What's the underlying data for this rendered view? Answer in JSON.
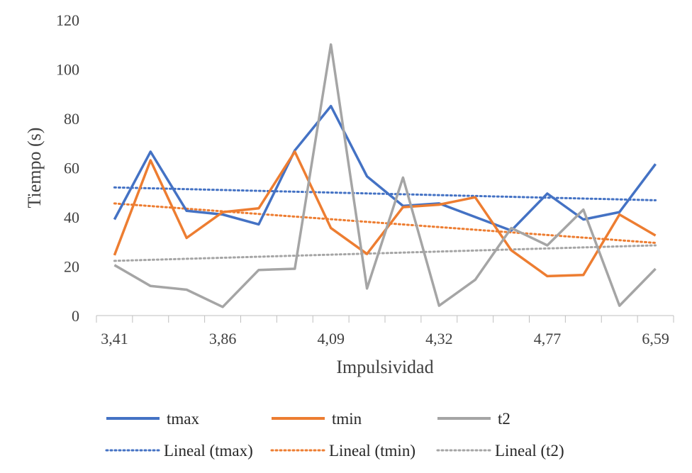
{
  "chart_data": {
    "type": "line",
    "xlabel": "Impulsividad",
    "ylabel": "Tiempo (s)",
    "ylim": [
      0,
      120
    ],
    "yticks": [
      0,
      20,
      40,
      60,
      80,
      100,
      120
    ],
    "xtick_labels": [
      "3,41",
      "3,86",
      "4,09",
      "4,32",
      "4,77",
      "6,59"
    ],
    "grid": false,
    "legend_position": "bottom",
    "series": [
      {
        "name": "tmax",
        "color": "#4472C4",
        "values": [
          39,
          66.5,
          42.5,
          41,
          37,
          67,
          85,
          56.5,
          44.5,
          45.5,
          40,
          34.5,
          49.5,
          39,
          42,
          61.5
        ]
      },
      {
        "name": "tmin",
        "color": "#ED7D31",
        "values": [
          24.5,
          63,
          31.5,
          42,
          43.5,
          66.5,
          35.5,
          25,
          44,
          45,
          48,
          26.5,
          16,
          16.5,
          41,
          32.5
        ]
      },
      {
        "name": "t2",
        "color": "#A5A5A5",
        "values": [
          20.5,
          12,
          10.5,
          3.5,
          18.5,
          19,
          110,
          11,
          56,
          4,
          14.5,
          35.5,
          28.5,
          43,
          4,
          19
        ]
      }
    ],
    "trendlines": [
      {
        "name": "Lineal (tmax)",
        "color": "#4472C4",
        "start": 52,
        "end": 46.8
      },
      {
        "name": "Lineal (tmin)",
        "color": "#ED7D31",
        "start": 45.5,
        "end": 29.5
      },
      {
        "name": "Lineal (t2)",
        "color": "#A5A5A5",
        "start": 22.2,
        "end": 28.5
      }
    ]
  }
}
